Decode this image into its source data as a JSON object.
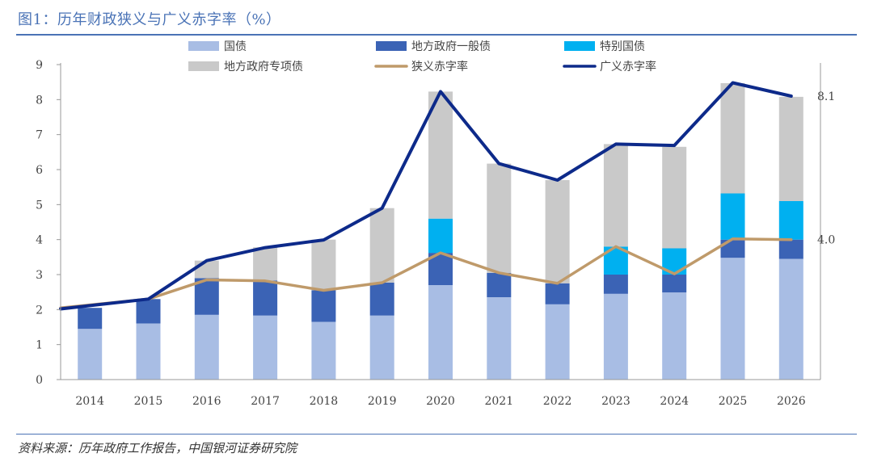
{
  "figure": {
    "title": "图1：历年财政狭义与广义赤字率（%）",
    "source": "资料来源：历年政府工作报告，中国银河证券研究院"
  },
  "colors": {
    "guozhai": "#a8bde4",
    "local_general": "#3b63b5",
    "special_treasury": "#00b0f0",
    "local_special": "#c9c9c9",
    "narrow": "#bf9a6a",
    "broad": "#0d2a8a"
  },
  "chart_data": {
    "type": "bar",
    "title": "图1：历年财政狭义与广义赤字率（%）",
    "xlabel": "",
    "ylabel": "",
    "ylim": [
      0,
      9
    ],
    "yticks": [
      "0",
      "1",
      "2",
      "3",
      "4",
      "5",
      "6",
      "7",
      "8",
      "9"
    ],
    "categories": [
      "2014",
      "2015",
      "2016",
      "2017",
      "2018",
      "2019",
      "2020",
      "2021",
      "2022",
      "2023",
      "2024",
      "2025",
      "2026"
    ],
    "stack_order": [
      "国债",
      "地方政府一般债",
      "特别国债",
      "地方政府专项债"
    ],
    "series": [
      {
        "name": "国债",
        "kind": "bar",
        "color_key": "guozhai",
        "values": [
          1.45,
          1.6,
          1.85,
          1.83,
          1.65,
          1.83,
          2.7,
          2.35,
          2.15,
          2.45,
          2.49,
          3.48,
          3.45
        ]
      },
      {
        "name": "地方政府一般债",
        "kind": "bar",
        "color_key": "local_general",
        "values": [
          0.6,
          0.7,
          1.05,
          1.0,
          0.9,
          0.94,
          0.92,
          0.7,
          0.6,
          0.55,
          0.51,
          0.52,
          0.55
        ]
      },
      {
        "name": "特别国债",
        "kind": "bar",
        "color_key": "special_treasury",
        "values": [
          0,
          0,
          0,
          0,
          0,
          0,
          0.98,
          0,
          0,
          0.8,
          0.75,
          1.32,
          1.1
        ]
      },
      {
        "name": "地方政府专项债",
        "kind": "bar",
        "color_key": "local_special",
        "values": [
          0,
          0,
          0.5,
          0.95,
          1.45,
          2.13,
          3.63,
          3.12,
          2.95,
          2.93,
          2.9,
          3.15,
          2.98
        ]
      },
      {
        "name": "狭义赤字率",
        "kind": "line",
        "color_key": "narrow",
        "values": [
          2.05,
          2.3,
          2.85,
          2.82,
          2.55,
          2.77,
          3.62,
          3.05,
          2.75,
          3.8,
          3.02,
          4.02,
          4.0
        ]
      },
      {
        "name": "广义赤字率",
        "kind": "line",
        "color_key": "broad",
        "values": [
          2.02,
          2.3,
          3.4,
          3.77,
          3.99,
          4.9,
          8.23,
          6.17,
          5.7,
          6.73,
          6.69,
          8.48,
          8.1
        ]
      }
    ],
    "legend_order": [
      "国债",
      "地方政府一般债",
      "特别国债",
      "地方政府专项债",
      "狭义赤字率",
      "广义赤字率"
    ],
    "annotations": [
      {
        "series": "广义赤字率",
        "category": "2026",
        "text": "8.1"
      },
      {
        "series": "狭义赤字率",
        "category": "2026",
        "text": "4.0"
      }
    ],
    "grid": false,
    "legend_position": "top"
  }
}
